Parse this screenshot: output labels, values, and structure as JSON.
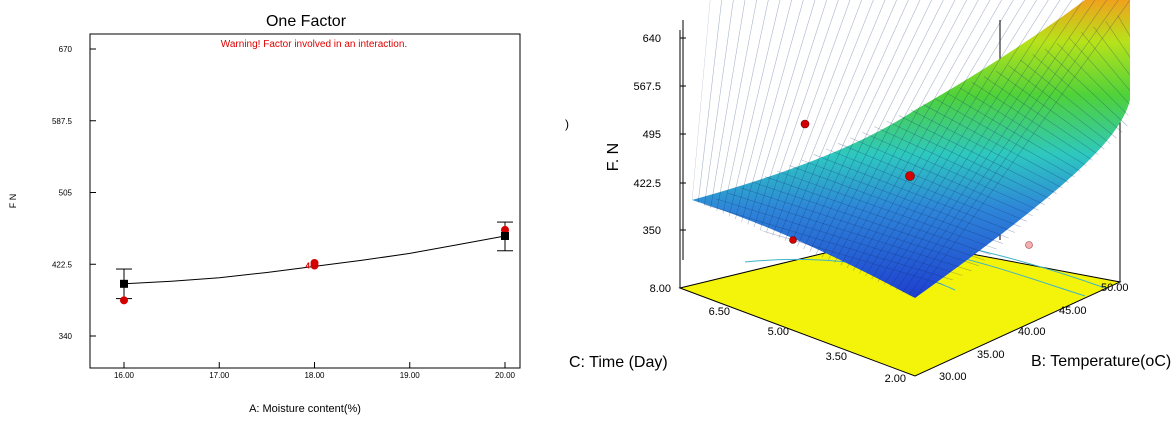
{
  "chart_data": [
    {
      "type": "scatter",
      "title": "One Factor",
      "subtitle": "Warning! Factor involved in an interaction.",
      "xlabel": "A: Moisture content(%)",
      "ylabel": "F N",
      "xlim": [
        16,
        20
      ],
      "ylim": [
        340,
        670
      ],
      "x_ticks": [
        "16.00",
        "17.00",
        "18.00",
        "19.00",
        "20.00"
      ],
      "y_ticks": [
        "340",
        "422.5",
        "505",
        "587.5",
        "670"
      ],
      "design_label": "4",
      "fit_curve": {
        "x": [
          16,
          16.5,
          17,
          17.5,
          18,
          18.5,
          19,
          19.5,
          20
        ],
        "y": [
          400,
          403,
          407,
          413,
          420,
          427,
          435,
          445,
          455
        ]
      },
      "predicted": [
        {
          "x": 16,
          "y": 400,
          "low": 383,
          "high": 417
        },
        {
          "x": 20,
          "y": 455,
          "low": 438,
          "high": 471
        }
      ],
      "observed": [
        {
          "x": 16,
          "y": 381
        },
        {
          "x": 18,
          "y": 421
        },
        {
          "x": 18,
          "y": 424
        },
        {
          "x": 20,
          "y": 462
        }
      ],
      "colors": {
        "fit_line": "#000000",
        "observed": "#d40000",
        "predicted": "#000000",
        "title": "#000000",
        "warning": "#e00000",
        "axis": "#000000"
      }
    },
    {
      "type": "surface",
      "zlabel": "F. N",
      "xlabel": "B: Temperature(oC)",
      "ylabel": "C: Time (Day)",
      "z_ticks": [
        "350",
        "422.5",
        "495",
        "567.5",
        "640"
      ],
      "x_ticks": [
        "30.00",
        "35.00",
        "40.00",
        "45.00",
        "50.00"
      ],
      "y_ticks": [
        "2.00",
        "3.50",
        "5.00",
        "6.50",
        "8.00"
      ],
      "stray_mark": ")",
      "colors": {
        "surface_low": "#1e4fdc",
        "surface_mid": "#3fd15a",
        "surface_high": "#f0a21c",
        "floor": "#f4f40a",
        "contour": "#3fb3c8",
        "points": "#d40000"
      }
    }
  ]
}
